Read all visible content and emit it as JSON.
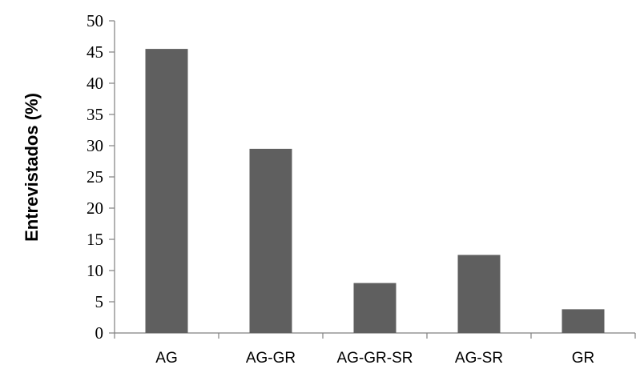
{
  "chart_data": {
    "type": "bar",
    "title": "",
    "xlabel": "",
    "ylabel": "Entrevistados (%)",
    "categories": [
      "AG",
      "AG-GR",
      "AG-GR-SR",
      "AG-SR",
      "GR"
    ],
    "values": [
      45.5,
      29.5,
      8.0,
      12.5,
      3.8
    ],
    "ylim": [
      0,
      50
    ],
    "yticks": [
      "0",
      "5",
      "10",
      "15",
      "20",
      "25",
      "30",
      "35",
      "40",
      "45",
      "50"
    ],
    "grid": false,
    "legend": "none",
    "bar_color": "#5f5f5f"
  }
}
